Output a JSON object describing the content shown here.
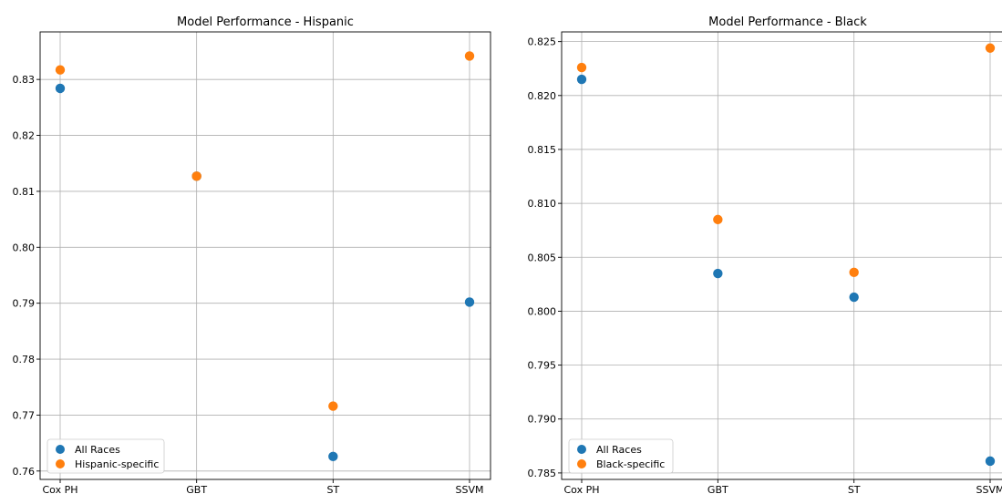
{
  "chart_data": [
    {
      "type": "scatter",
      "title": "Model Performance - Hispanic",
      "xlabel": "",
      "ylabel": "",
      "categories": [
        "Cox PH",
        "GBT",
        "ST",
        "SSVM"
      ],
      "ylim": [
        0.7585,
        0.8385
      ],
      "yticks": [
        "0.76",
        "0.77",
        "0.78",
        "0.79",
        "0.80",
        "0.81",
        "0.82",
        "0.83"
      ],
      "grid": true,
      "legend_position": "lower-left",
      "series": [
        {
          "name": "All Races",
          "color": "#1f77b4",
          "values": [
            0.8284,
            0.8127,
            0.7626,
            0.7902
          ]
        },
        {
          "name": "Hispanic-specific",
          "color": "#ff7f0e",
          "values": [
            0.8317,
            0.8127,
            0.7716,
            0.8342
          ]
        }
      ]
    },
    {
      "type": "scatter",
      "title": "Model Performance - Black",
      "xlabel": "",
      "ylabel": "",
      "categories": [
        "Cox PH",
        "GBT",
        "ST",
        "SSVM"
      ],
      "ylim": [
        0.7844,
        0.8259
      ],
      "yticks": [
        "0.785",
        "0.790",
        "0.795",
        "0.800",
        "0.805",
        "0.810",
        "0.815",
        "0.820",
        "0.825"
      ],
      "grid": true,
      "legend_position": "lower-left",
      "series": [
        {
          "name": "All Races",
          "color": "#1f77b4",
          "values": [
            0.8215,
            0.8035,
            0.8013,
            0.7861
          ]
        },
        {
          "name": "Black-specific",
          "color": "#ff7f0e",
          "values": [
            0.8226,
            0.8085,
            0.8036,
            0.8244
          ]
        }
      ]
    }
  ]
}
